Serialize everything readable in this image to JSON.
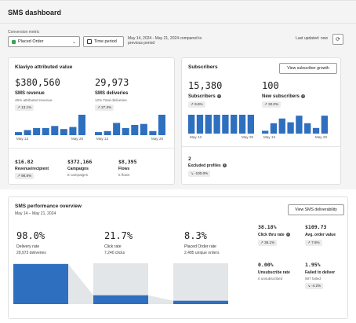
{
  "header": {
    "title": "SMS dashboard",
    "conversion_label": "Conversion metric",
    "conversion_value": "Placed Order",
    "time_period_label": "Time period",
    "date_range": "May 14, 2024 - May 21, 2024 compared to previous period",
    "last_updated": "Last updated: now"
  },
  "attributed": {
    "title": "Klaviyo attributed value",
    "revenue": {
      "value": "$380,560",
      "label": "SMS revenue",
      "sub": "46% attributed revenue",
      "badge": "↗ 13.1%"
    },
    "deliveries": {
      "value": "29,973",
      "label": "SMS deliveries",
      "sub": "12% Total deliveries",
      "badge": "↗ 27.3%"
    },
    "axis_start": "May 13",
    "axis_end": "May 20",
    "revenue_bars": [
      0.15,
      0.25,
      0.35,
      0.35,
      0.45,
      0.3,
      0.4,
      1.0
    ],
    "deliveries_bars": [
      0.15,
      0.2,
      0.6,
      0.35,
      0.5,
      0.55,
      0.2,
      1.0
    ],
    "bottom": [
      {
        "value": "$16.82",
        "label": "Revenue/recipient",
        "sub": "",
        "badge": "↗ 98.8%"
      },
      {
        "value": "$372,166",
        "label": "Campaigns",
        "sub": "8 campaigns",
        "badge": ""
      },
      {
        "value": "$8,395",
        "label": "Flows",
        "sub": "5 flows",
        "badge": ""
      }
    ]
  },
  "subscribers": {
    "title": "Subscribers",
    "growth_button": "View subscriber growth",
    "subscribers": {
      "value": "15,380",
      "label": "Subscribers",
      "badge": "↗ 9.6%"
    },
    "new": {
      "value": "100",
      "label": "New subscribers",
      "badge": "↗ 32.0%"
    },
    "axis_start": "May 13",
    "axis_end": "May 20",
    "subscriber_bars": [
      1.0,
      1.0,
      1.0,
      1.0,
      1.0,
      1.0,
      1.0,
      1.0
    ],
    "new_bars": [
      0.15,
      0.55,
      0.8,
      0.6,
      0.95,
      0.55,
      0.3,
      0.95
    ],
    "excluded": {
      "value": "2",
      "label": "Excluded profiles",
      "badge": "↘ -100.0%"
    }
  },
  "performance": {
    "title": "SMS performance overview",
    "date_range": "May 14 – May 21, 2024",
    "deliverability_button": "View SMS deliverability",
    "funnel": [
      {
        "value": "98.0%",
        "label": "Delivery rate",
        "sub": "29,973 deliveries",
        "level": 0.98
      },
      {
        "value": "21.7%",
        "label": "Click rate",
        "sub": "7,240 clicks",
        "level": 0.217
      },
      {
        "value": "8.3%",
        "label": "Placed Order rate",
        "sub": "2,485 unique orders",
        "level": 0.083
      }
    ],
    "right": [
      {
        "value": "38.18%",
        "label": "Click thru rate",
        "sub": "",
        "badge": "↗ 36.1%"
      },
      {
        "value": "$109.73",
        "label": "Avg. order value",
        "sub": "",
        "badge": "↗ 7.6%"
      },
      {
        "value": "0.00%",
        "label": "Unsubscribe rate",
        "sub": "0 unsubscribed",
        "badge": ""
      },
      {
        "value": "1.95%",
        "label": "Failed to deliver",
        "sub": "597 failed",
        "badge": "↘ -4.2%"
      }
    ]
  },
  "colors": {
    "bar_blue": "#2e6fbf",
    "bar_grey": "#e3e6e9"
  }
}
